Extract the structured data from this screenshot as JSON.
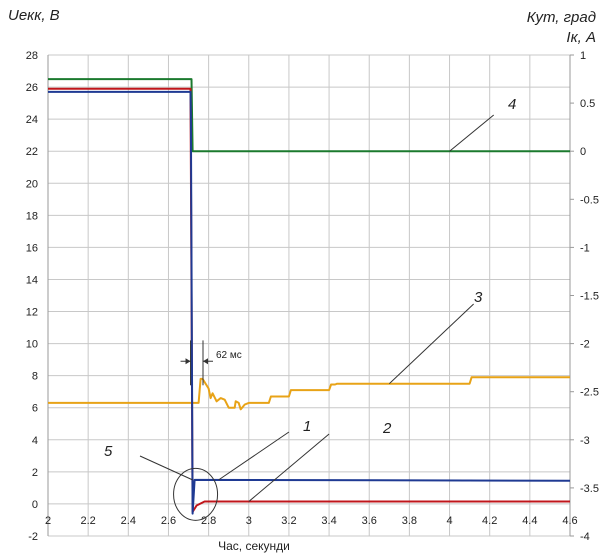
{
  "chart_data": {
    "type": "line",
    "title": "",
    "ylabel_left": "Uекк, В",
    "ylabel_right_line1": "Кут, град",
    "ylabel_right_line2": "Iк, А",
    "xlabel": "Час, секунди",
    "xlim": [
      2,
      4.6
    ],
    "ylim_left": [
      -2,
      28
    ],
    "ylim_right": [
      -4,
      1
    ],
    "x_ticks": [
      "2",
      "2.2",
      "2.4",
      "2.6",
      "2.8",
      "3",
      "3.2",
      "3.4",
      "3.6",
      "3.8",
      "4",
      "4.2",
      "4.4",
      "4.6"
    ],
    "y_left_ticks": [
      "-2",
      "0",
      "2",
      "4",
      "6",
      "8",
      "10",
      "12",
      "14",
      "16",
      "18",
      "20",
      "22",
      "24",
      "26",
      "28"
    ],
    "y_right_ticks": [
      "-4",
      "-3.5",
      "-3",
      "-2.5",
      "-2",
      "-1.5",
      "-1",
      "-0.5",
      "0",
      "0.5",
      "1"
    ],
    "grid": true,
    "colors": {
      "series1": "#1f3a93",
      "series2": "#c0161b",
      "series3": "#e8a317",
      "series4": "#1b7a2e",
      "grid": "#c8c8c8"
    },
    "series": [
      {
        "id": "1",
        "axis": "left",
        "color": "#1f3a93",
        "points": [
          [
            2,
            25.7
          ],
          [
            2.71,
            25.7
          ],
          [
            2.712,
            24
          ],
          [
            2.72,
            -0.6
          ],
          [
            2.73,
            1.5
          ],
          [
            4.6,
            1.45
          ]
        ]
      },
      {
        "id": "2",
        "axis": "left",
        "color": "#c0161b",
        "points": [
          [
            2,
            25.9
          ],
          [
            2.71,
            25.9
          ],
          [
            2.72,
            -0.5
          ],
          [
            2.74,
            -0.1
          ],
          [
            2.78,
            0.15
          ],
          [
            4.6,
            0.15
          ]
        ]
      },
      {
        "id": "3",
        "axis": "left",
        "color": "#e8a317",
        "points": [
          [
            2,
            6.3
          ],
          [
            2.7,
            6.3
          ],
          [
            2.75,
            6.3
          ],
          [
            2.76,
            7.8
          ],
          [
            2.77,
            7.8
          ],
          [
            2.8,
            7.2
          ],
          [
            2.81,
            6.6
          ],
          [
            2.82,
            6.9
          ],
          [
            2.84,
            6.4
          ],
          [
            2.86,
            6.6
          ],
          [
            2.88,
            6.5
          ],
          [
            2.9,
            6.0
          ],
          [
            2.93,
            6.0
          ],
          [
            2.935,
            6.4
          ],
          [
            2.95,
            6.3
          ],
          [
            2.96,
            5.9
          ],
          [
            2.98,
            6.2
          ],
          [
            3.0,
            6.3
          ],
          [
            3.1,
            6.3
          ],
          [
            3.11,
            6.7
          ],
          [
            3.2,
            6.7
          ],
          [
            3.21,
            7.1
          ],
          [
            3.4,
            7.1
          ],
          [
            3.41,
            7.45
          ],
          [
            3.43,
            7.45
          ],
          [
            3.44,
            7.5
          ],
          [
            4.1,
            7.5
          ],
          [
            4.11,
            7.9
          ],
          [
            4.6,
            7.9
          ]
        ]
      },
      {
        "id": "4",
        "axis": "right",
        "color": "#1b7a2e",
        "points": [
          [
            2,
            0.75
          ],
          [
            2.715,
            0.75
          ],
          [
            2.72,
            0
          ],
          [
            4.6,
            0
          ]
        ]
      }
    ],
    "annotations": {
      "label_1": "1",
      "label_2": "2",
      "label_3": "3",
      "label_4": "4",
      "label_5": "5",
      "delay_label": "62 мс"
    }
  }
}
